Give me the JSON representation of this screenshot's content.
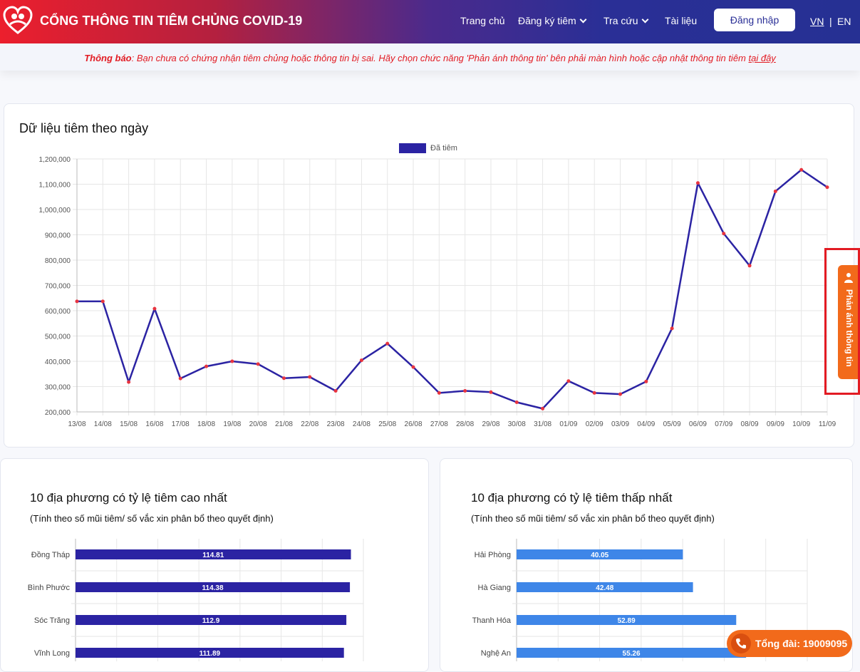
{
  "header": {
    "site_title": "CỔNG THÔNG TIN TIÊM CHỦNG COVID-19",
    "nav": [
      {
        "label": "Trang chủ"
      },
      {
        "label": "Đăng ký tiêm"
      },
      {
        "label": "Tra cứu"
      },
      {
        "label": "Tài liệu"
      }
    ],
    "login_label": "Đăng nhập",
    "lang_vn": "VN",
    "lang_sep": "|",
    "lang_en": "EN"
  },
  "notice": {
    "label": "Thông báo",
    "text": ": Bạn chưa có chứng nhận tiêm chủng hoặc thông tin bị sai. Hãy chọn chức năng 'Phản ánh thông tin' bên phải màn hình hoặc cập nhật thông tin tiêm ",
    "link": "tại đây"
  },
  "daily": {
    "title": "Dữ liệu tiêm theo ngày"
  },
  "top10_high": {
    "title": "10 địa phương có tỷ lệ tiêm cao nhất",
    "subtitle": "(Tính theo số mũi tiêm/ số vắc xin phân bổ theo quyết định)"
  },
  "top10_low": {
    "title": "10 địa phương có tỷ lệ tiêm thấp nhất",
    "subtitle": "(Tính theo số mũi tiêm/ số vắc xin phân bổ theo quyết định)"
  },
  "side_tab": {
    "label": "Phản ánh thông tin"
  },
  "hotline": {
    "label": "Tổng đài: 19009095"
  },
  "colors": {
    "line": "#2b23a3",
    "point": "#e8343f",
    "bar_high": "#2b23a3",
    "bar_low": "#3e86e8",
    "accent": "#f26a1b"
  },
  "chart_data": [
    {
      "type": "line",
      "title": "",
      "legend": [
        "Đã tiêm"
      ],
      "categories": [
        "13/08",
        "14/08",
        "15/08",
        "16/08",
        "17/08",
        "18/08",
        "19/08",
        "20/08",
        "21/08",
        "22/08",
        "23/08",
        "24/08",
        "25/08",
        "26/08",
        "27/08",
        "28/08",
        "29/08",
        "30/08",
        "31/08",
        "01/09",
        "02/09",
        "03/09",
        "04/09",
        "05/09",
        "06/09",
        "07/09",
        "08/09",
        "09/09",
        "10/09",
        "11/09"
      ],
      "series": [
        {
          "name": "Đã tiêm",
          "values": [
            637000,
            637000,
            318000,
            608000,
            332000,
            380000,
            400000,
            389000,
            333000,
            338000,
            283000,
            404000,
            470000,
            377000,
            275000,
            283000,
            278000,
            238000,
            213000,
            322000,
            275000,
            270000,
            320000,
            530000,
            1105000,
            905000,
            778000,
            1072000,
            1157000,
            1088000
          ]
        }
      ],
      "ylim": [
        200000,
        1200000
      ],
      "yticks": [
        "1,200,000",
        "1,100,000",
        "1,000,000",
        "900,000",
        "800,000",
        "700,000",
        "600,000",
        "500,000",
        "400,000",
        "300,000",
        "200,000"
      ],
      "grid": true,
      "legend_position": "top"
    },
    {
      "type": "bar",
      "orientation": "horizontal",
      "categories": [
        "Đồng Tháp",
        "Bình Phước",
        "Sóc Trăng",
        "Vĩnh Long"
      ],
      "values": [
        114.81,
        114.38,
        112.9,
        111.89
      ],
      "labels": [
        "114.81",
        "114.38",
        "112.9",
        "111.89"
      ],
      "xlim": [
        0,
        120
      ],
      "grid": true
    },
    {
      "type": "bar",
      "orientation": "horizontal",
      "categories": [
        "Hải Phòng",
        "Hà Giang",
        "Thanh Hóa",
        "Nghệ An"
      ],
      "values": [
        40.05,
        42.48,
        52.89,
        55.26
      ],
      "labels": [
        "40.05",
        "42.48",
        "52.89",
        "55.26"
      ],
      "xlim": [
        0,
        70
      ],
      "grid": true
    }
  ]
}
